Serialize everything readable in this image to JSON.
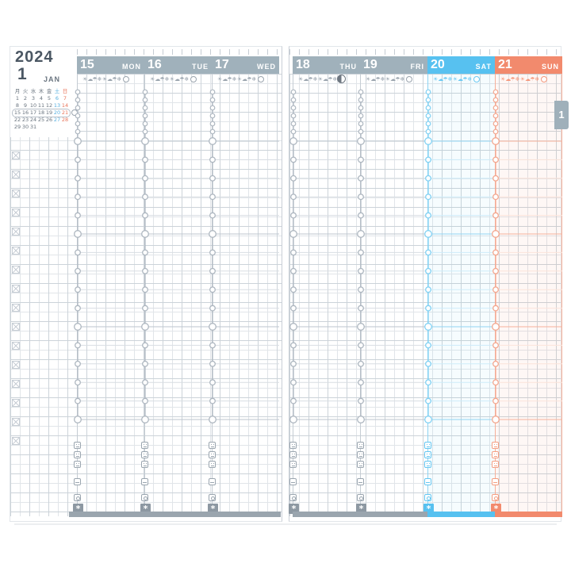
{
  "calendar": {
    "year": "2024",
    "month_number": "1",
    "month_abbr": "JAN",
    "weekday_headers": [
      "月",
      "火",
      "水",
      "木",
      "金",
      "土",
      "日"
    ],
    "weeks": [
      [
        "1",
        "2",
        "3",
        "4",
        "5",
        "6",
        "7"
      ],
      [
        "8",
        "9",
        "10",
        "11",
        "12",
        "13",
        "14"
      ],
      [
        "15",
        "16",
        "17",
        "18",
        "19",
        "20",
        "21"
      ],
      [
        "22",
        "23",
        "24",
        "25",
        "26",
        "27",
        "28"
      ],
      [
        "29",
        "30",
        "31",
        "",
        "",
        "",
        ""
      ]
    ],
    "highlighted_week_index": 2
  },
  "month_tab": {
    "label": "1"
  },
  "days": [
    {
      "date": "15",
      "weekday": "MON",
      "type": "weekday",
      "moon": "crescent-outline"
    },
    {
      "date": "16",
      "weekday": "TUE",
      "type": "weekday",
      "moon": "crescent-outline"
    },
    {
      "date": "17",
      "weekday": "WED",
      "type": "weekday",
      "moon": "crescent-outline"
    },
    {
      "date": "18",
      "weekday": "THU",
      "type": "weekday",
      "moon": "first-quarter"
    },
    {
      "date": "19",
      "weekday": "FRI",
      "type": "weekday",
      "moon": "gibbous-outline"
    },
    {
      "date": "20",
      "weekday": "SAT",
      "type": "saturday",
      "moon": "gibbous-outline"
    },
    {
      "date": "21",
      "weekday": "SUN",
      "type": "sunday",
      "moon": "gibbous-outline"
    }
  ],
  "weather_icons": [
    "sun",
    "cloud",
    "umbrella",
    "snow",
    "sun",
    "cloud",
    "umbrella",
    "snow"
  ],
  "tracker_icons": [
    "meal-breakfast",
    "meal-lunch",
    "meal-dinner",
    "medicine",
    "health",
    "star-marker"
  ],
  "colors": {
    "header_gray": "#a0b1bb",
    "saturday_blue": "#57c1f0",
    "sunday_orange": "#f28a6d",
    "calendar_saturday": "#56aede",
    "calendar_sunday": "#e8745a",
    "bar_gray": "#9aa5ae"
  }
}
